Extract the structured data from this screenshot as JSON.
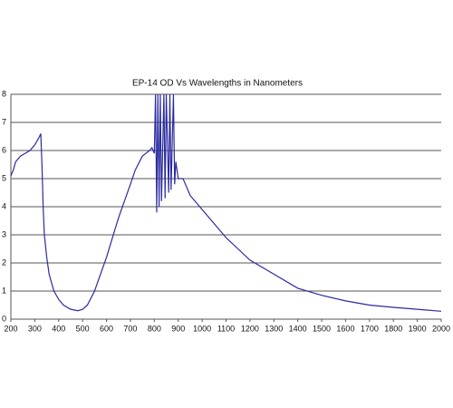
{
  "chart_data": {
    "type": "line",
    "title": "EP-14  OD Vs Wavelengths in Nanometers",
    "x": [
      200,
      210,
      220,
      240,
      260,
      280,
      300,
      320,
      325,
      330,
      335,
      340,
      350,
      360,
      380,
      400,
      420,
      450,
      480,
      500,
      520,
      550,
      600,
      650,
      700,
      720,
      750,
      780,
      790,
      800,
      805,
      810,
      815,
      820,
      825,
      830,
      840,
      845,
      850,
      860,
      865,
      870,
      880,
      885,
      890,
      900,
      920,
      930,
      950,
      1000,
      1050,
      1100,
      1150,
      1200,
      1300,
      1400,
      1500,
      1600,
      1700,
      1800,
      1900,
      2000
    ],
    "values": [
      5.1,
      5.3,
      5.6,
      5.8,
      5.9,
      6.0,
      6.2,
      6.5,
      6.6,
      5.5,
      4.0,
      3.0,
      2.2,
      1.6,
      1.0,
      0.7,
      0.5,
      0.35,
      0.3,
      0.35,
      0.5,
      1.0,
      2.2,
      3.6,
      4.8,
      5.3,
      5.8,
      6.0,
      6.1,
      5.9,
      8,
      3.8,
      8,
      4.0,
      8,
      4.2,
      8,
      4.3,
      8,
      4.5,
      8,
      4.6,
      8,
      4.8,
      5.6,
      5.0,
      5.0,
      4.8,
      4.4,
      3.9,
      3.4,
      2.9,
      2.5,
      2.1,
      1.6,
      1.1,
      0.85,
      0.65,
      0.5,
      0.42,
      0.35,
      0.28
    ],
    "color": "#2b2ba0",
    "xlim": [
      200,
      2000
    ],
    "xticks": [
      200,
      300,
      400,
      500,
      600,
      700,
      800,
      900,
      1000,
      1100,
      1200,
      1300,
      1400,
      1500,
      1600,
      1700,
      1800,
      1900,
      2000
    ],
    "ylim": [
      0,
      8
    ],
    "yticks": [
      0,
      1,
      2,
      3,
      4,
      5,
      6,
      7,
      8
    ],
    "grid": true
  }
}
